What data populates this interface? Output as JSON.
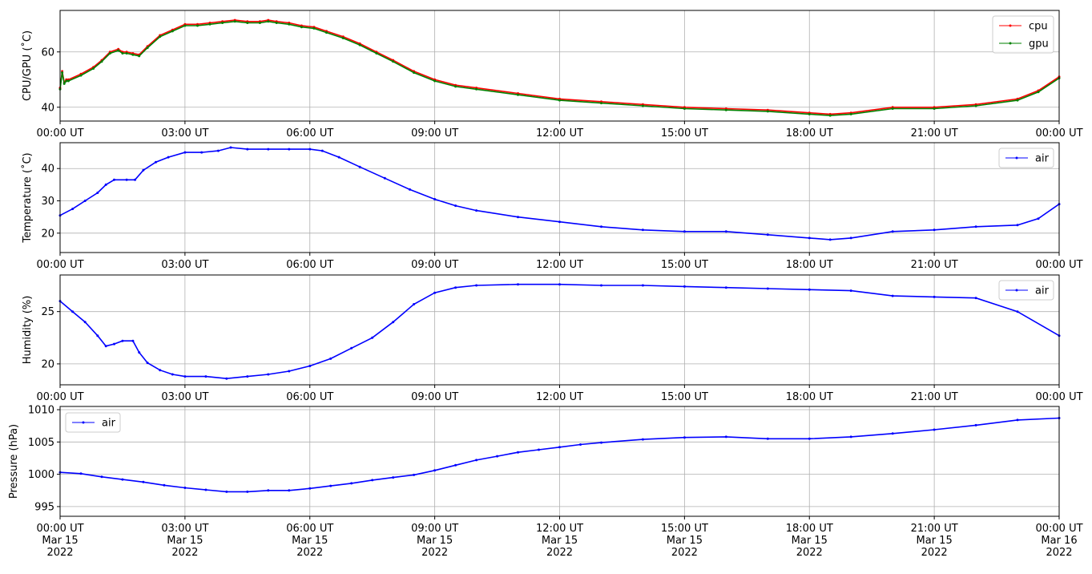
{
  "chart_data": [
    {
      "type": "line",
      "ylabel": "CPU/GPU (˚C)",
      "xlim": [
        "00:00",
        "24:00"
      ],
      "ylim": [
        35,
        75
      ],
      "yticks": [
        40,
        60
      ],
      "xticks": [
        "00:00 UT",
        "03:00 UT",
        "06:00 UT",
        "09:00 UT",
        "12:00 UT",
        "15:00 UT",
        "18:00 UT",
        "21:00 UT",
        "00:00 UT"
      ],
      "grid": true,
      "legend": "top-right",
      "series": [
        {
          "name": "cpu",
          "color": "#ff0000",
          "x": [
            0,
            0.05,
            0.1,
            0.15,
            0.2,
            0.5,
            0.8,
            1.0,
            1.2,
            1.4,
            1.5,
            1.6,
            1.75,
            1.9,
            2.1,
            2.4,
            2.7,
            3.0,
            3.3,
            3.6,
            3.9,
            4.2,
            4.5,
            4.8,
            5.0,
            5.2,
            5.5,
            5.8,
            6.1,
            6.4,
            6.8,
            7.2,
            7.6,
            8.0,
            8.5,
            9.0,
            9.5,
            10.0,
            11.0,
            12.0,
            13.0,
            14.0,
            15.0,
            16.0,
            17.0,
            18.0,
            18.5,
            19.0,
            20.0,
            21.0,
            22.0,
            23.0,
            23.5,
            24.0
          ],
          "y": [
            47,
            53,
            49,
            50,
            50,
            52,
            54.5,
            57,
            60,
            61,
            60,
            60,
            59.5,
            59,
            62,
            66,
            68,
            70,
            70,
            70.5,
            71,
            71.5,
            71,
            71,
            71.5,
            71,
            70.5,
            69.5,
            69,
            67.5,
            65.5,
            63,
            60,
            57,
            53,
            50,
            48,
            47,
            45,
            43,
            42,
            41,
            40,
            39.5,
            39,
            38,
            37.5,
            38,
            40,
            40,
            41,
            43,
            46,
            51
          ]
        },
        {
          "name": "gpu",
          "color": "#008000",
          "x": [
            0,
            0.05,
            0.1,
            0.15,
            0.2,
            0.5,
            0.8,
            1.0,
            1.2,
            1.4,
            1.5,
            1.6,
            1.75,
            1.9,
            2.1,
            2.4,
            2.7,
            3.0,
            3.3,
            3.6,
            3.9,
            4.2,
            4.5,
            4.8,
            5.0,
            5.2,
            5.5,
            5.8,
            6.1,
            6.4,
            6.8,
            7.2,
            7.6,
            8.0,
            8.5,
            9.0,
            9.5,
            10.0,
            11.0,
            12.0,
            13.0,
            14.0,
            15.0,
            16.0,
            17.0,
            18.0,
            18.5,
            19.0,
            20.0,
            21.0,
            22.0,
            23.0,
            23.5,
            24.0
          ],
          "y": [
            46.5,
            52.5,
            48.5,
            49.5,
            49.5,
            51.5,
            54,
            56.5,
            59.5,
            60.5,
            59.5,
            59.5,
            59,
            58.5,
            61.5,
            65.5,
            67.5,
            69.5,
            69.5,
            70,
            70.5,
            71,
            70.5,
            70.5,
            71,
            70.5,
            70,
            69,
            68.5,
            67,
            65,
            62.5,
            59.5,
            56.5,
            52.5,
            49.5,
            47.5,
            46.5,
            44.5,
            42.5,
            41.5,
            40.5,
            39.5,
            39,
            38.5,
            37.5,
            37,
            37.5,
            39.5,
            39.5,
            40.5,
            42.5,
            45.5,
            50.5
          ]
        }
      ]
    },
    {
      "type": "line",
      "ylabel": "Temperature (˚C)",
      "xlim": [
        "00:00",
        "24:00"
      ],
      "ylim": [
        14,
        48
      ],
      "yticks": [
        20,
        30,
        40
      ],
      "xticks": [
        "00:00 UT",
        "03:00 UT",
        "06:00 UT",
        "09:00 UT",
        "12:00 UT",
        "15:00 UT",
        "18:00 UT",
        "21:00 UT",
        "00:00 UT"
      ],
      "grid": true,
      "legend": "top-right",
      "series": [
        {
          "name": "air",
          "color": "#0000ff",
          "x": [
            0,
            0.3,
            0.6,
            0.9,
            1.1,
            1.3,
            1.6,
            1.8,
            2.0,
            2.3,
            2.6,
            3.0,
            3.4,
            3.8,
            4.1,
            4.5,
            5.0,
            5.5,
            6.0,
            6.3,
            6.7,
            7.2,
            7.8,
            8.4,
            9.0,
            9.5,
            10.0,
            11.0,
            12.0,
            13.0,
            14.0,
            15.0,
            16.0,
            17.0,
            18.0,
            18.5,
            19.0,
            20.0,
            21.0,
            22.0,
            23.0,
            23.5,
            24.0
          ],
          "y": [
            25.5,
            27.5,
            30,
            32.5,
            35,
            36.5,
            36.5,
            36.5,
            39.5,
            42,
            43.5,
            45,
            45,
            45.5,
            46.5,
            46,
            46,
            46,
            46,
            45.5,
            43.5,
            40.5,
            37,
            33.5,
            30.5,
            28.5,
            27,
            25,
            23.5,
            22,
            21,
            20.5,
            20.5,
            19.5,
            18.5,
            18,
            18.5,
            20.5,
            21,
            22,
            22.5,
            24.5,
            29
          ]
        }
      ]
    },
    {
      "type": "line",
      "ylabel": "Humidity (%)",
      "xlim": [
        "00:00",
        "24:00"
      ],
      "ylim": [
        18,
        28.5
      ],
      "yticks": [
        20,
        25
      ],
      "xticks": [
        "00:00 UT",
        "03:00 UT",
        "06:00 UT",
        "09:00 UT",
        "12:00 UT",
        "15:00 UT",
        "18:00 UT",
        "21:00 UT",
        "00:00 UT"
      ],
      "grid": true,
      "legend": "top-right",
      "series": [
        {
          "name": "air",
          "color": "#0000ff",
          "x": [
            0,
            0.3,
            0.6,
            0.9,
            1.1,
            1.3,
            1.5,
            1.75,
            1.9,
            2.1,
            2.4,
            2.7,
            3.0,
            3.5,
            4.0,
            4.5,
            5.0,
            5.5,
            6.0,
            6.5,
            7.0,
            7.5,
            8.0,
            8.5,
            9.0,
            9.5,
            10.0,
            11.0,
            12.0,
            13.0,
            14.0,
            15.0,
            16.0,
            17.0,
            18.0,
            19.0,
            20.0,
            21.0,
            22.0,
            23.0,
            24.0
          ],
          "y": [
            26,
            25,
            24,
            22.7,
            21.7,
            21.9,
            22.2,
            22.2,
            21.1,
            20.1,
            19.4,
            19,
            18.8,
            18.8,
            18.6,
            18.8,
            19,
            19.3,
            19.8,
            20.5,
            21.5,
            22.5,
            24,
            25.7,
            26.8,
            27.3,
            27.5,
            27.6,
            27.6,
            27.5,
            27.5,
            27.4,
            27.3,
            27.2,
            27.1,
            27,
            26.5,
            26.4,
            26.3,
            25,
            22.7
          ]
        }
      ]
    },
    {
      "type": "line",
      "ylabel": "Pressure (hPa)",
      "xlim": [
        "2022-03-15 00:00",
        "2022-03-16 00:00"
      ],
      "ylim": [
        993.5,
        1010.5
      ],
      "yticks": [
        995,
        1000,
        1005,
        1010
      ],
      "xticks": [
        "00:00 UT",
        "03:00 UT",
        "06:00 UT",
        "09:00 UT",
        "12:00 UT",
        "15:00 UT",
        "18:00 UT",
        "21:00 UT",
        "00:00 UT"
      ],
      "xticks_date": [
        "Mar 15",
        "Mar 15",
        "Mar 15",
        "Mar 15",
        "Mar 15",
        "Mar 15",
        "Mar 15",
        "Mar 15",
        "Mar 16"
      ],
      "xticks_year": [
        "2022",
        "2022",
        "2022",
        "2022",
        "2022",
        "2022",
        "2022",
        "2022",
        "2022"
      ],
      "grid": true,
      "legend": "top-left",
      "series": [
        {
          "name": "air",
          "color": "#0000ff",
          "x": [
            0,
            0.5,
            1.0,
            1.5,
            2.0,
            2.5,
            3.0,
            3.5,
            4.0,
            4.5,
            5.0,
            5.5,
            6.0,
            6.5,
            7.0,
            7.5,
            8.0,
            8.5,
            9.0,
            9.5,
            10.0,
            10.5,
            11.0,
            11.5,
            12.0,
            12.5,
            13.0,
            14.0,
            15.0,
            16.0,
            17.0,
            18.0,
            19.0,
            20.0,
            21.0,
            22.0,
            23.0,
            24.0
          ],
          "y": [
            1000.3,
            1000.1,
            999.6,
            999.2,
            998.8,
            998.3,
            997.9,
            997.6,
            997.3,
            997.3,
            997.5,
            997.5,
            997.8,
            998.2,
            998.6,
            999.1,
            999.5,
            999.9,
            1000.6,
            1001.4,
            1002.2,
            1002.8,
            1003.4,
            1003.8,
            1004.2,
            1004.6,
            1004.9,
            1005.4,
            1005.7,
            1005.8,
            1005.5,
            1005.5,
            1005.8,
            1006.3,
            1006.9,
            1007.6,
            1008.4,
            1008.7
          ]
        }
      ]
    }
  ]
}
